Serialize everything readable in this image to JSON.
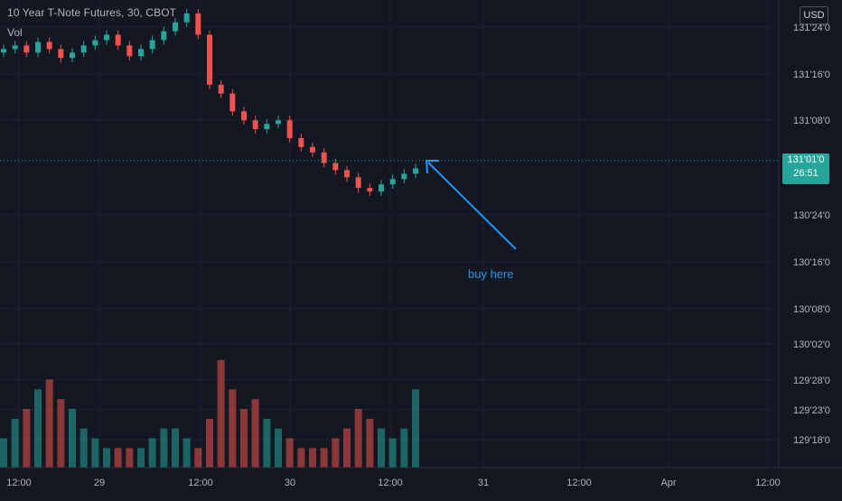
{
  "header": {
    "title": "10 Year T-Note Futures, 30, CBOT",
    "volume_label": "Vol"
  },
  "currency": "USD",
  "current_price": {
    "value": "131'01'0",
    "countdown": "26:51"
  },
  "annotation": {
    "text": "buy here",
    "color": "#2196f3"
  },
  "colors": {
    "background": "#131722",
    "up": "#26a69a",
    "down": "#ef5350",
    "grid": "#1e222d",
    "axis_text": "#b2b5be",
    "price_line": "#26a69a"
  },
  "chart_data": {
    "type": "candlestick",
    "price_axis_labels": [
      "131'24'0",
      "131'16'0",
      "131'08'0",
      "130'24'0",
      "130'16'0",
      "130'08'0",
      "130'02'0",
      "129'28'0",
      "129'23'0",
      "129'18'0"
    ],
    "time_axis_labels": [
      "12:00",
      "29",
      "12:00",
      "30",
      "12:00",
      "31",
      "12:00",
      "Apr",
      "12:00"
    ],
    "series": [
      {
        "name": "price",
        "values": [
          131.7,
          131.72,
          131.68,
          131.74,
          131.7,
          131.65,
          131.68,
          131.72,
          131.75,
          131.78,
          131.72,
          131.66,
          131.7,
          131.75,
          131.8,
          131.85,
          131.9,
          131.78,
          131.5,
          131.45,
          131.35,
          131.3,
          131.25,
          131.28,
          131.3,
          131.2,
          131.15,
          131.12,
          131.06,
          131.02,
          130.98,
          130.92,
          130.9,
          130.94,
          130.97,
          131.0,
          131.03
        ]
      },
      {
        "name": "volume",
        "values": [
          3,
          5,
          6,
          8,
          9,
          7,
          6,
          4,
          3,
          2,
          2,
          2,
          2,
          3,
          4,
          4,
          3,
          2,
          5,
          11,
          8,
          6,
          7,
          5,
          4,
          3,
          2,
          2,
          2,
          3,
          4,
          6,
          5,
          4,
          3,
          4,
          8
        ]
      }
    ]
  }
}
